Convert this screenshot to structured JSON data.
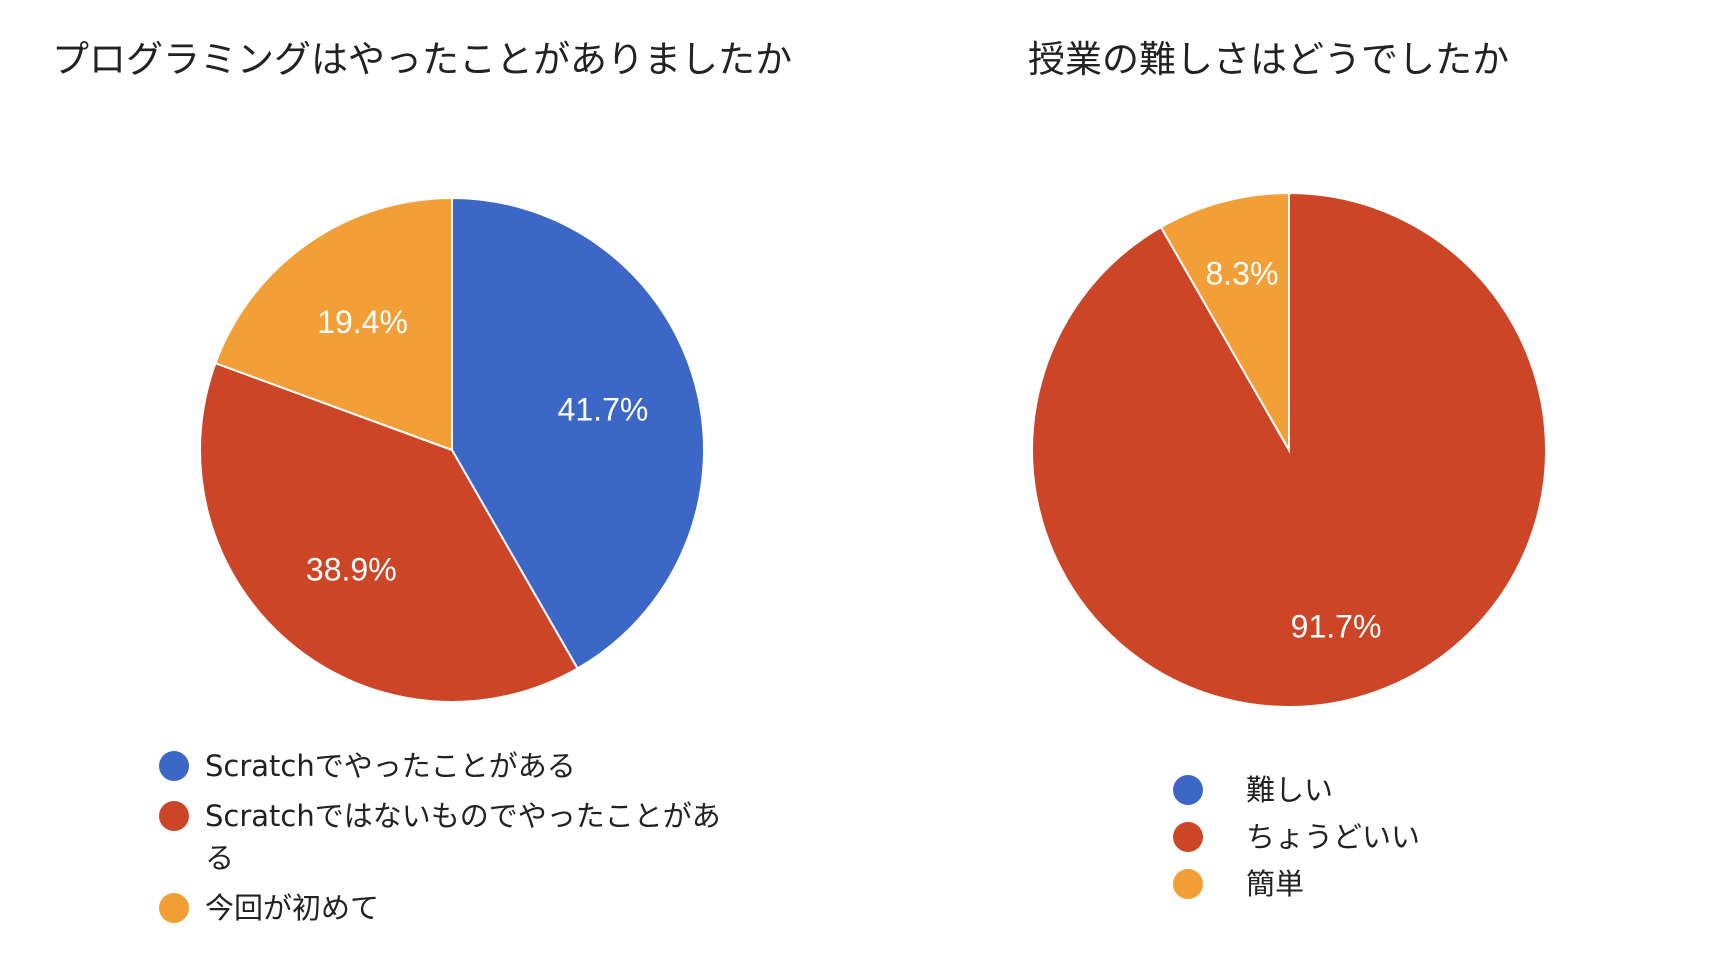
{
  "chart_data": [
    {
      "type": "pie",
      "title": "プログラミングはやったことがありましたか",
      "categories": [
        "Scratchでやったことがある",
        "Scratchではないものでやったことがある",
        "今回が初めて"
      ],
      "legend_lines": [
        [
          "Scratchでやったことがある"
        ],
        [
          "Scratchではないものでやったことがあ",
          "る"
        ],
        [
          "今回が初めて"
        ]
      ],
      "values": [
        41.7,
        38.9,
        19.4
      ],
      "labels": [
        "41.7%",
        "38.9%",
        "19.4%"
      ],
      "colors": [
        "#3c67c6",
        "#cc4527",
        "#f29f38"
      ],
      "legend_position": "bottom"
    },
    {
      "type": "pie",
      "title": "授業の難しさはどうでしたか",
      "categories": [
        "難しい",
        "ちょうどいい",
        "簡単"
      ],
      "legend_lines": [
        [
          "難しい"
        ],
        [
          "ちょうどいい"
        ],
        [
          "簡単"
        ]
      ],
      "values": [
        0,
        91.7,
        8.3
      ],
      "labels": [
        "",
        "91.7%",
        "8.3%"
      ],
      "colors": [
        "#3c67c6",
        "#cc4527",
        "#f29f38"
      ],
      "legend_position": "bottom"
    }
  ]
}
